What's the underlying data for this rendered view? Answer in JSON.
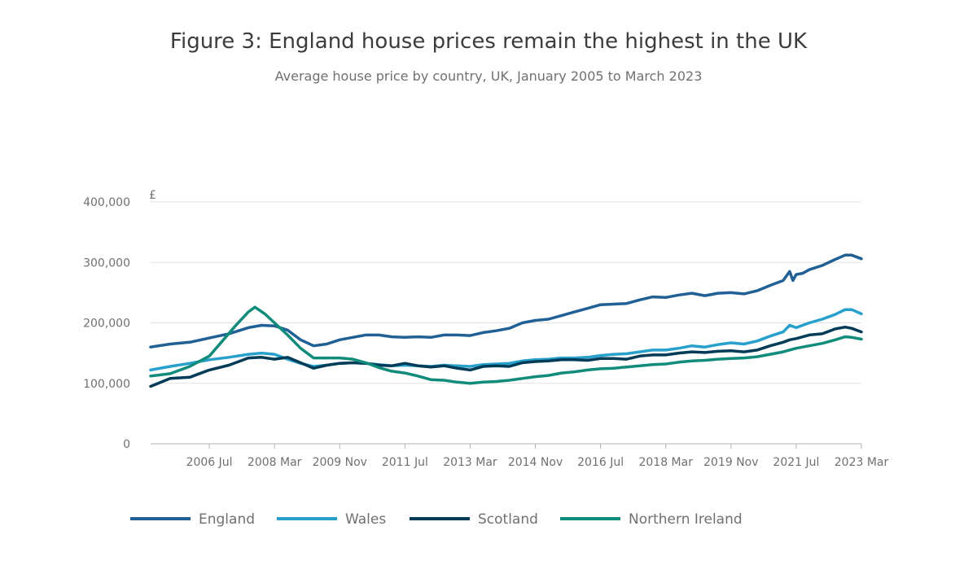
{
  "chart_data": {
    "type": "line",
    "title": "Figure 3: England house prices remain the highest in the UK",
    "subtitle": "Average house price by country, UK, January 2005 to March 2023",
    "y_unit": "£",
    "ylim": [
      0,
      400000
    ],
    "yticks": [
      0,
      100000,
      200000,
      300000,
      400000
    ],
    "ytick_labels": [
      "0",
      "100,000",
      "200,000",
      "300,000",
      "400,000"
    ],
    "x_start": "2005-01",
    "x_end": "2023-03",
    "xticks": [
      "2006-07",
      "2008-03",
      "2009-11",
      "2011-07",
      "2013-03",
      "2014-11",
      "2016-07",
      "2018-03",
      "2019-11",
      "2021-07",
      "2023-03"
    ],
    "xtick_labels": [
      "2006 Jul",
      "2008 Mar",
      "2009 Nov",
      "2011 Jul",
      "2013 Mar",
      "2014 Nov",
      "2016 Jul",
      "2018 Mar",
      "2019 Nov",
      "2021 Jul",
      "2023 Mar"
    ],
    "grid": true,
    "legend_position": "bottom",
    "series": [
      {
        "name": "England",
        "color": "#206095",
        "points": [
          [
            "2005-01",
            160000
          ],
          [
            "2005-07",
            165000
          ],
          [
            "2006-01",
            168000
          ],
          [
            "2006-07",
            175000
          ],
          [
            "2007-01",
            182000
          ],
          [
            "2007-07",
            192000
          ],
          [
            "2007-11",
            196000
          ],
          [
            "2008-03",
            195000
          ],
          [
            "2008-07",
            188000
          ],
          [
            "2008-11",
            172000
          ],
          [
            "2009-03",
            162000
          ],
          [
            "2009-07",
            165000
          ],
          [
            "2009-11",
            172000
          ],
          [
            "2010-03",
            176000
          ],
          [
            "2010-07",
            180000
          ],
          [
            "2010-11",
            180000
          ],
          [
            "2011-03",
            177000
          ],
          [
            "2011-07",
            176000
          ],
          [
            "2011-11",
            177000
          ],
          [
            "2012-03",
            176000
          ],
          [
            "2012-07",
            180000
          ],
          [
            "2012-11",
            180000
          ],
          [
            "2013-03",
            179000
          ],
          [
            "2013-07",
            184000
          ],
          [
            "2013-11",
            187000
          ],
          [
            "2014-03",
            191000
          ],
          [
            "2014-07",
            200000
          ],
          [
            "2014-11",
            204000
          ],
          [
            "2015-03",
            206000
          ],
          [
            "2015-07",
            212000
          ],
          [
            "2015-11",
            218000
          ],
          [
            "2016-03",
            224000
          ],
          [
            "2016-07",
            230000
          ],
          [
            "2016-11",
            231000
          ],
          [
            "2017-03",
            232000
          ],
          [
            "2017-07",
            238000
          ],
          [
            "2017-11",
            243000
          ],
          [
            "2018-03",
            242000
          ],
          [
            "2018-07",
            246000
          ],
          [
            "2018-11",
            249000
          ],
          [
            "2019-03",
            245000
          ],
          [
            "2019-07",
            249000
          ],
          [
            "2019-11",
            250000
          ],
          [
            "2020-03",
            248000
          ],
          [
            "2020-07",
            253000
          ],
          [
            "2020-11",
            262000
          ],
          [
            "2021-03",
            270000
          ],
          [
            "2021-05",
            285000
          ],
          [
            "2021-06",
            270000
          ],
          [
            "2021-07",
            280000
          ],
          [
            "2021-09",
            282000
          ],
          [
            "2021-11",
            288000
          ],
          [
            "2022-03",
            295000
          ],
          [
            "2022-07",
            305000
          ],
          [
            "2022-10",
            312000
          ],
          [
            "2022-12",
            312000
          ],
          [
            "2023-03",
            306000
          ]
        ]
      },
      {
        "name": "Wales",
        "color": "#27a0cc",
        "points": [
          [
            "2005-01",
            122000
          ],
          [
            "2005-07",
            128000
          ],
          [
            "2006-01",
            133000
          ],
          [
            "2006-07",
            139000
          ],
          [
            "2007-01",
            143000
          ],
          [
            "2007-07",
            148000
          ],
          [
            "2007-11",
            150000
          ],
          [
            "2008-03",
            148000
          ],
          [
            "2008-07",
            140000
          ],
          [
            "2008-11",
            133000
          ],
          [
            "2009-03",
            128000
          ],
          [
            "2009-07",
            130000
          ],
          [
            "2009-11",
            133000
          ],
          [
            "2010-03",
            134000
          ],
          [
            "2010-07",
            133000
          ],
          [
            "2010-11",
            131000
          ],
          [
            "2011-03",
            129000
          ],
          [
            "2011-07",
            130000
          ],
          [
            "2011-11",
            129000
          ],
          [
            "2012-03",
            128000
          ],
          [
            "2012-07",
            130000
          ],
          [
            "2012-11",
            129000
          ],
          [
            "2013-03",
            128000
          ],
          [
            "2013-07",
            131000
          ],
          [
            "2013-11",
            132000
          ],
          [
            "2014-03",
            133000
          ],
          [
            "2014-07",
            137000
          ],
          [
            "2014-11",
            139000
          ],
          [
            "2015-03",
            140000
          ],
          [
            "2015-07",
            142000
          ],
          [
            "2015-11",
            142000
          ],
          [
            "2016-03",
            143000
          ],
          [
            "2016-07",
            146000
          ],
          [
            "2016-11",
            148000
          ],
          [
            "2017-03",
            149000
          ],
          [
            "2017-07",
            152000
          ],
          [
            "2017-11",
            155000
          ],
          [
            "2018-03",
            155000
          ],
          [
            "2018-07",
            158000
          ],
          [
            "2018-11",
            162000
          ],
          [
            "2019-03",
            160000
          ],
          [
            "2019-07",
            164000
          ],
          [
            "2019-11",
            167000
          ],
          [
            "2020-03",
            165000
          ],
          [
            "2020-07",
            170000
          ],
          [
            "2020-11",
            178000
          ],
          [
            "2021-03",
            185000
          ],
          [
            "2021-05",
            196000
          ],
          [
            "2021-07",
            192000
          ],
          [
            "2021-11",
            200000
          ],
          [
            "2022-03",
            206000
          ],
          [
            "2022-07",
            214000
          ],
          [
            "2022-10",
            222000
          ],
          [
            "2022-12",
            222000
          ],
          [
            "2023-03",
            215000
          ]
        ]
      },
      {
        "name": "Scotland",
        "color": "#003c57",
        "points": [
          [
            "2005-01",
            95000
          ],
          [
            "2005-07",
            108000
          ],
          [
            "2006-01",
            110000
          ],
          [
            "2006-07",
            122000
          ],
          [
            "2007-01",
            130000
          ],
          [
            "2007-07",
            142000
          ],
          [
            "2007-11",
            143000
          ],
          [
            "2008-03",
            140000
          ],
          [
            "2008-07",
            143000
          ],
          [
            "2008-11",
            134000
          ],
          [
            "2009-03",
            125000
          ],
          [
            "2009-07",
            130000
          ],
          [
            "2009-11",
            133000
          ],
          [
            "2010-03",
            134000
          ],
          [
            "2010-07",
            133000
          ],
          [
            "2010-11",
            130000
          ],
          [
            "2011-03",
            129000
          ],
          [
            "2011-07",
            133000
          ],
          [
            "2011-11",
            129000
          ],
          [
            "2012-03",
            127000
          ],
          [
            "2012-07",
            129000
          ],
          [
            "2012-11",
            125000
          ],
          [
            "2013-03",
            122000
          ],
          [
            "2013-07",
            128000
          ],
          [
            "2013-11",
            129000
          ],
          [
            "2014-03",
            128000
          ],
          [
            "2014-07",
            134000
          ],
          [
            "2014-11",
            136000
          ],
          [
            "2015-03",
            137000
          ],
          [
            "2015-07",
            139000
          ],
          [
            "2015-11",
            139000
          ],
          [
            "2016-03",
            138000
          ],
          [
            "2016-07",
            141000
          ],
          [
            "2016-11",
            141000
          ],
          [
            "2017-03",
            140000
          ],
          [
            "2017-07",
            145000
          ],
          [
            "2017-11",
            147000
          ],
          [
            "2018-03",
            147000
          ],
          [
            "2018-07",
            150000
          ],
          [
            "2018-11",
            152000
          ],
          [
            "2019-03",
            151000
          ],
          [
            "2019-07",
            153000
          ],
          [
            "2019-11",
            154000
          ],
          [
            "2020-03",
            152000
          ],
          [
            "2020-07",
            155000
          ],
          [
            "2020-11",
            162000
          ],
          [
            "2021-03",
            168000
          ],
          [
            "2021-05",
            172000
          ],
          [
            "2021-07",
            174000
          ],
          [
            "2021-11",
            180000
          ],
          [
            "2022-03",
            182000
          ],
          [
            "2022-07",
            190000
          ],
          [
            "2022-10",
            193000
          ],
          [
            "2022-12",
            191000
          ],
          [
            "2023-03",
            185000
          ]
        ]
      },
      {
        "name": "Northern Ireland",
        "color": "#118c7b",
        "points": [
          [
            "2005-01",
            112000
          ],
          [
            "2005-07",
            116000
          ],
          [
            "2006-01",
            128000
          ],
          [
            "2006-07",
            145000
          ],
          [
            "2006-11",
            170000
          ],
          [
            "2007-03",
            195000
          ],
          [
            "2007-07",
            218000
          ],
          [
            "2007-09",
            226000
          ],
          [
            "2007-12",
            215000
          ],
          [
            "2008-03",
            200000
          ],
          [
            "2008-07",
            180000
          ],
          [
            "2008-11",
            158000
          ],
          [
            "2009-03",
            142000
          ],
          [
            "2009-11",
            142000
          ],
          [
            "2010-03",
            140000
          ],
          [
            "2010-07",
            134000
          ],
          [
            "2010-11",
            126000
          ],
          [
            "2011-03",
            120000
          ],
          [
            "2011-07",
            117000
          ],
          [
            "2011-11",
            112000
          ],
          [
            "2012-03",
            106000
          ],
          [
            "2012-07",
            105000
          ],
          [
            "2012-11",
            102000
          ],
          [
            "2013-03",
            100000
          ],
          [
            "2013-07",
            102000
          ],
          [
            "2013-11",
            103000
          ],
          [
            "2014-03",
            105000
          ],
          [
            "2014-07",
            108000
          ],
          [
            "2014-11",
            111000
          ],
          [
            "2015-03",
            113000
          ],
          [
            "2015-07",
            117000
          ],
          [
            "2015-11",
            119000
          ],
          [
            "2016-03",
            122000
          ],
          [
            "2016-07",
            124000
          ],
          [
            "2016-11",
            125000
          ],
          [
            "2017-03",
            127000
          ],
          [
            "2017-07",
            129000
          ],
          [
            "2017-11",
            131000
          ],
          [
            "2018-03",
            132000
          ],
          [
            "2018-07",
            135000
          ],
          [
            "2018-11",
            137000
          ],
          [
            "2019-03",
            138000
          ],
          [
            "2019-07",
            140000
          ],
          [
            "2019-11",
            141000
          ],
          [
            "2020-03",
            142000
          ],
          [
            "2020-07",
            144000
          ],
          [
            "2020-11",
            148000
          ],
          [
            "2021-03",
            152000
          ],
          [
            "2021-07",
            158000
          ],
          [
            "2021-11",
            162000
          ],
          [
            "2022-03",
            166000
          ],
          [
            "2022-07",
            172000
          ],
          [
            "2022-10",
            177000
          ],
          [
            "2022-12",
            176000
          ],
          [
            "2023-03",
            173000
          ]
        ]
      }
    ]
  }
}
